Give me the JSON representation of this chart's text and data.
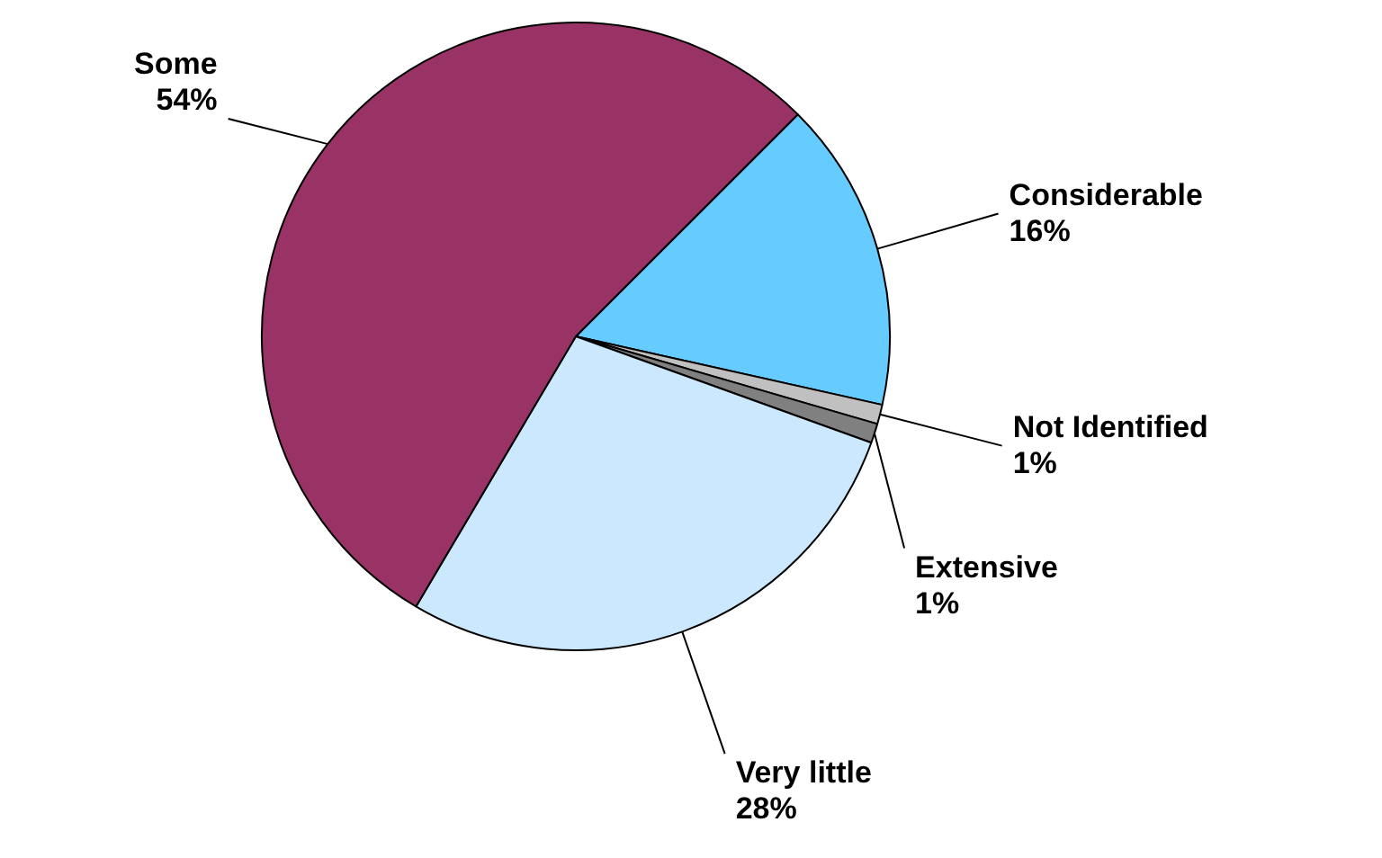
{
  "chart_data": {
    "type": "pie",
    "categories": [
      "Considerable",
      "Not Identified",
      "Extensive",
      "Very little",
      "Some"
    ],
    "values": [
      16,
      1,
      1,
      28,
      54
    ],
    "colors": [
      "#66ccff",
      "#c0c0c0",
      "#808080",
      "#cce8ff",
      "#993366"
    ],
    "value_labels": [
      "16%",
      "1%",
      "1%",
      "28%",
      "54%"
    ],
    "legend": false
  }
}
